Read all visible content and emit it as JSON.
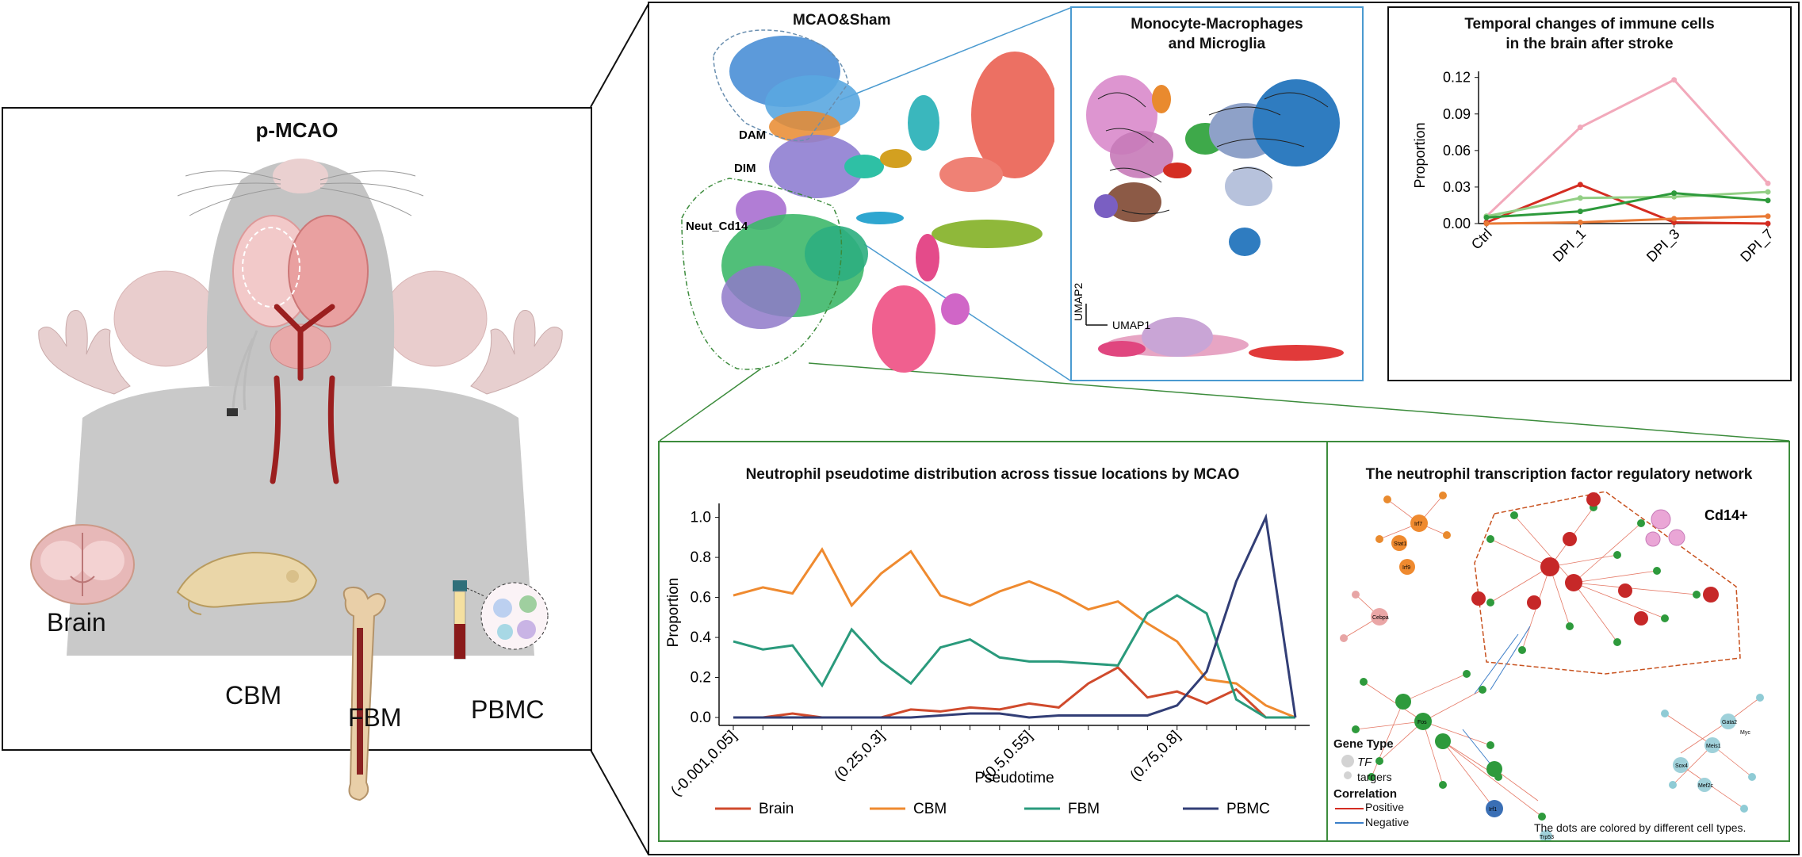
{
  "left_panel": {
    "title": "p-MCAO",
    "tissues": [
      "Brain",
      "CBM",
      "FBM",
      "PBMC"
    ]
  },
  "umap_panel": {
    "title": "MCAO&Sham",
    "labels": {
      "dam": "DAM",
      "dim": "DIM",
      "neut": "Neut_Cd14"
    }
  },
  "mono_panel": {
    "title_line1": "Monocyte-Macrophages",
    "title_line2": "and Microglia",
    "axis_x": "UMAP1",
    "axis_y": "UMAP2"
  },
  "temporal_panel": {
    "title_line1": "Temporal changes of immune cells",
    "title_line2": "in the brain after stroke"
  },
  "pseudo_panel": {
    "title": "Neutrophil pseudotime distribution across tissue locations by MCAO"
  },
  "network_panel": {
    "title": "The neutrophil transcription factor regulatory network",
    "cd14_label": "Cd14+",
    "gene_type_title": "Gene Type",
    "gene_type_tf": "TF",
    "gene_type_targets": "targers",
    "correlation_title": "Correlation",
    "correlation_positive": "Positive",
    "correlation_negative": "Negative",
    "footnote": "The dots are colored by different cell types.",
    "tf_nodes": [
      "Irf7",
      "Stat1",
      "Irf9",
      "Cebpa",
      "Gata2",
      "Myc",
      "Meis1",
      "Mef2c",
      "Sox4",
      "Fos",
      "Irf1",
      "Trp53"
    ]
  },
  "colors": {
    "brain": "#d04a2c",
    "cbm": "#ef8a2f",
    "fbm": "#2a9a7c",
    "pbmc": "#323e76",
    "pink": "#f0a5b8",
    "red": "#d42d22",
    "lightgreen": "#93cf85",
    "green": "#2e9a3c",
    "orange": "#e97935"
  },
  "chart_data": [
    {
      "type": "line",
      "title": "Temporal changes of immune cells in the brain after stroke",
      "categories": [
        "Ctrl",
        "DPI_1",
        "DPI_3",
        "DPI_7"
      ],
      "xlabel": "",
      "ylabel": "Proportion",
      "ylim": [
        0,
        0.125
      ],
      "yticks": [
        "0.00",
        "0.03",
        "0.06",
        "0.09",
        "0.12"
      ],
      "ytick_values": [
        0,
        0.03,
        0.06,
        0.09,
        0.12
      ],
      "series": [
        {
          "name": "pink",
          "color": "#f2a9bb",
          "values": [
            0.006,
            0.079,
            0.118,
            0.033
          ]
        },
        {
          "name": "red",
          "color": "#d42d22",
          "values": [
            0.001,
            0.032,
            0.001,
            0.0
          ]
        },
        {
          "name": "lightgreen",
          "color": "#93cf85",
          "values": [
            0.006,
            0.021,
            0.022,
            0.026
          ]
        },
        {
          "name": "green",
          "color": "#2e9a3c",
          "values": [
            0.005,
            0.01,
            0.025,
            0.019
          ]
        },
        {
          "name": "orange",
          "color": "#e97935",
          "values": [
            0.0,
            0.001,
            0.004,
            0.006
          ]
        }
      ]
    },
    {
      "type": "line",
      "title": "Neutrophil pseudotime distribution across tissue locations by MCAO",
      "xlabel": "Pseudotime",
      "ylabel": "Proportion",
      "ylim": [
        0,
        1.05
      ],
      "yticks": [
        "0.0",
        "0.2",
        "0.4",
        "0.6",
        "0.8",
        "1.0"
      ],
      "ytick_values": [
        0,
        0.2,
        0.4,
        0.6,
        0.8,
        1.0
      ],
      "x_tick_labels": [
        "(-0.001,0.05]",
        "(0.25,0.3]",
        "(0.5,0.55]",
        "(0.75,0.8]"
      ],
      "x_tick_label_index": [
        0,
        5,
        10,
        15
      ],
      "n_bins": 20,
      "series": [
        {
          "name": "Brain",
          "color": "#d04a2c",
          "values": [
            0.0,
            0.0,
            0.02,
            0.0,
            0.0,
            0.0,
            0.04,
            0.03,
            0.05,
            0.04,
            0.07,
            0.05,
            0.17,
            0.25,
            0.1,
            0.13,
            0.07,
            0.14,
            0.0,
            0.0
          ]
        },
        {
          "name": "CBM",
          "color": "#ef8a2f",
          "values": [
            0.61,
            0.65,
            0.62,
            0.84,
            0.56,
            0.72,
            0.83,
            0.61,
            0.56,
            0.63,
            0.68,
            0.62,
            0.54,
            0.58,
            0.47,
            0.38,
            0.19,
            0.17,
            0.06,
            0.0
          ]
        },
        {
          "name": "FBM",
          "color": "#2a9a7c",
          "values": [
            0.38,
            0.34,
            0.36,
            0.16,
            0.44,
            0.28,
            0.17,
            0.35,
            0.39,
            0.3,
            0.28,
            0.28,
            0.27,
            0.26,
            0.52,
            0.61,
            0.52,
            0.09,
            0.0,
            0.0
          ]
        },
        {
          "name": "PBMC",
          "color": "#323e76",
          "values": [
            0.0,
            0.0,
            0.0,
            0.0,
            0.0,
            0.0,
            0.0,
            0.01,
            0.02,
            0.02,
            0.0,
            0.01,
            0.01,
            0.01,
            0.01,
            0.06,
            0.23,
            0.68,
            1.0,
            0.0
          ]
        }
      ],
      "legend": [
        "Brain",
        "CBM",
        "FBM",
        "PBMC"
      ]
    }
  ]
}
